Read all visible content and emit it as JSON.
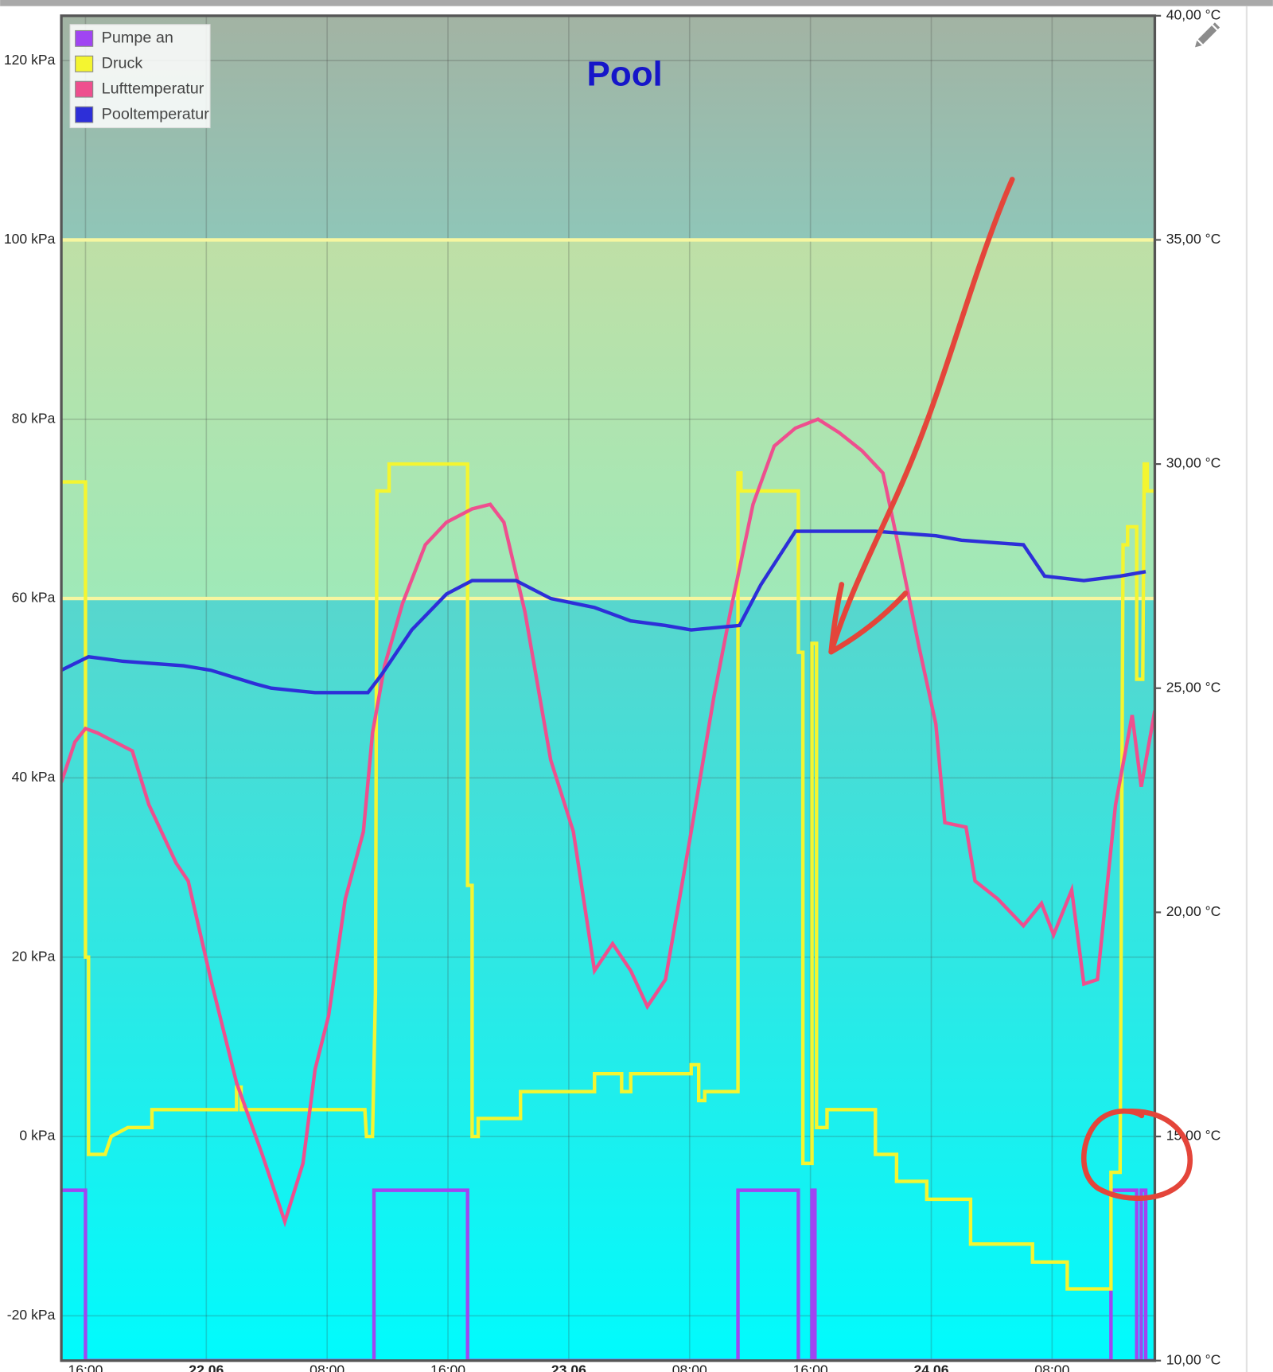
{
  "chart_data": {
    "type": "line",
    "title": "Pool",
    "xlim": [
      -9.6,
      62.8
    ],
    "xticks": [
      {
        "value": -8,
        "label": "16:00"
      },
      {
        "value": 0,
        "label": "22.06"
      },
      {
        "value": 8,
        "label": "08:00"
      },
      {
        "value": 16,
        "label": "16:00"
      },
      {
        "value": 24,
        "label": "23.06"
      },
      {
        "value": 32,
        "label": "08:00"
      },
      {
        "value": 40,
        "label": "16:00"
      },
      {
        "value": 48,
        "label": "24.06"
      },
      {
        "value": 56,
        "label": "08:00"
      }
    ],
    "ylim": [
      -25,
      125
    ],
    "yticks": [
      {
        "value": -20,
        "label": "-20 kPa"
      },
      {
        "value": 0,
        "label": "0 kPa"
      },
      {
        "value": 20,
        "label": "20 kPa"
      },
      {
        "value": 40,
        "label": "40 kPa"
      },
      {
        "value": 60,
        "label": "60 kPa"
      },
      {
        "value": 80,
        "label": "80 kPa"
      },
      {
        "value": 100,
        "label": "100 kPa"
      },
      {
        "value": 120,
        "label": "120 kPa"
      }
    ],
    "y2lim": [
      10,
      40
    ],
    "y2ticks": [
      {
        "value": 10,
        "label": "10,00 °C"
      },
      {
        "value": 15,
        "label": "15,00 °C"
      },
      {
        "value": 20,
        "label": "20,00 °C"
      },
      {
        "value": 25,
        "label": "25,00 °C"
      },
      {
        "value": 30,
        "label": "30,00 °C"
      },
      {
        "value": 35,
        "label": "35,00 °C"
      },
      {
        "value": 40,
        "label": "40,00 °C"
      }
    ],
    "thresholds": [
      60,
      100
    ],
    "grid": true,
    "legend": "top-left",
    "series": [
      {
        "name": "Pumpe an",
        "color": "#a045f2",
        "x": [
          -9.6,
          -8,
          -8,
          11.1,
          11.1,
          17.3,
          17.3,
          35.2,
          35.2,
          39.2,
          39.2,
          40.1,
          40.1,
          40.3,
          40.3,
          59.9,
          59.9,
          61.6,
          61.6,
          61.9,
          61.9,
          62.2,
          62.2,
          62.8
        ],
        "values": [
          -6,
          -6,
          -25,
          -25,
          -6,
          -6,
          -25,
          -25,
          -6,
          -6,
          -25,
          -25,
          -6,
          -6,
          -25,
          -25,
          -6,
          -6,
          -25,
          -25,
          -6,
          -6,
          -25,
          -25
        ]
      },
      {
        "name": "Druck",
        "color": "#f4f530",
        "x": [
          -9.6,
          -8,
          -8,
          -7.8,
          -7.8,
          -6.7,
          -6.3,
          -5.2,
          -3.6,
          -3.6,
          2.0,
          2.0,
          2.3,
          2.3,
          10.5,
          10.6,
          11.0,
          11.2,
          11.3,
          12.1,
          12.1,
          17.3,
          17.3,
          17.6,
          17.6,
          18.0,
          18.0,
          20.8,
          20.8,
          25.7,
          25.7,
          27.5,
          27.5,
          28.1,
          28.1,
          32.1,
          32.1,
          32.6,
          32.6,
          33.0,
          33.0,
          35.2,
          35.2,
          35.4,
          35.4,
          39.2,
          39.2,
          39.5,
          39.5,
          40.1,
          40.1,
          40.4,
          40.4,
          41.1,
          41.1,
          44.3,
          44.3,
          45.7,
          45.7,
          47.7,
          47.7,
          50.6,
          50.6,
          54.7,
          54.7,
          57.0,
          57.0,
          59.9,
          59.9,
          60.5,
          60.7,
          61.0,
          61.0,
          61.6,
          61.6,
          62.0,
          62.1,
          62.3,
          62.3,
          62.8
        ],
        "values": [
          73,
          73,
          20,
          20,
          -2,
          -2,
          0,
          1,
          1,
          3,
          3,
          5.5,
          5.5,
          3,
          3,
          0,
          0,
          16,
          72,
          72,
          75,
          75,
          28,
          28,
          0,
          0,
          2,
          2,
          5,
          5,
          7,
          7,
          5,
          5,
          7,
          7,
          8,
          8,
          4,
          4,
          5,
          5,
          74,
          74,
          72,
          72,
          54,
          54,
          -3,
          -3,
          55,
          55,
          1,
          1,
          3,
          3,
          -2,
          -2,
          -5,
          -5,
          -7,
          -7,
          -12,
          -12,
          -14,
          -14,
          -17,
          -17,
          -4,
          -4,
          66,
          66,
          68,
          68,
          51,
          51,
          75,
          75,
          72,
          72
        ]
      },
      {
        "name": "Lufttemperatur",
        "color": "#ee4f8e",
        "axis": "y2",
        "x": [
          -9.6,
          -8.7,
          -8,
          -7.2,
          -4.9,
          -3.8,
          -2.0,
          -1.2,
          0.3,
          2.0,
          3.7,
          5.2,
          6.4,
          7.2,
          8.1,
          9.2,
          10.4,
          11.0,
          11.8,
          13.0,
          14.5,
          15.9,
          17.6,
          18.8,
          19.7,
          21.1,
          22.8,
          24.3,
          25.7,
          26.9,
          28.1,
          29.2,
          30.4,
          32.1,
          33.6,
          34.7,
          36.2,
          37.6,
          39.0,
          40.5,
          41.9,
          43.4,
          44.8,
          46.0,
          47.2,
          48.3,
          48.9,
          50.3,
          50.9,
          52.4,
          54.1,
          55.3,
          56.1,
          57.3,
          58.1,
          59.0,
          60.2,
          61.3,
          61.9,
          62.8
        ],
        "values": [
          22.9,
          23.8,
          24.1,
          24.0,
          23.6,
          22.4,
          21.1,
          20.7,
          18.5,
          16.2,
          14.6,
          13.1,
          14.4,
          16.5,
          17.7,
          20.3,
          21.8,
          24.0,
          25.5,
          26.9,
          28.2,
          28.7,
          29.0,
          29.1,
          28.7,
          26.7,
          23.4,
          21.8,
          18.7,
          19.3,
          18.7,
          17.9,
          18.5,
          21.8,
          24.8,
          26.7,
          29.1,
          30.4,
          30.8,
          31.0,
          30.7,
          30.3,
          29.8,
          27.9,
          25.9,
          24.2,
          22.0,
          21.9,
          20.7,
          20.3,
          19.7,
          20.2,
          19.5,
          20.5,
          18.4,
          18.5,
          22.4,
          24.4,
          22.8,
          24.5
        ]
      },
      {
        "name": "Pooltemperatur",
        "color": "#2d2fd8",
        "axis": "y2",
        "x": [
          -9.6,
          -7.8,
          -5.5,
          -1.5,
          0.3,
          3.2,
          4.3,
          7.2,
          10.7,
          11.6,
          13.6,
          15.9,
          17.6,
          20.5,
          22.8,
          25.7,
          28.1,
          30.4,
          32.1,
          35.3,
          36.7,
          39.0,
          44.3,
          48.3,
          50.0,
          54.1,
          55.5,
          58.1,
          60.5,
          62.2
        ],
        "values": [
          25.4,
          25.7,
          25.6,
          25.5,
          25.4,
          25.1,
          25.0,
          24.9,
          24.9,
          25.3,
          26.3,
          27.1,
          27.4,
          27.4,
          27.0,
          26.8,
          26.5,
          26.4,
          26.3,
          26.4,
          27.3,
          28.5,
          28.5,
          28.4,
          28.3,
          28.2,
          27.5,
          27.4,
          27.5,
          27.6
        ]
      }
    ]
  }
}
